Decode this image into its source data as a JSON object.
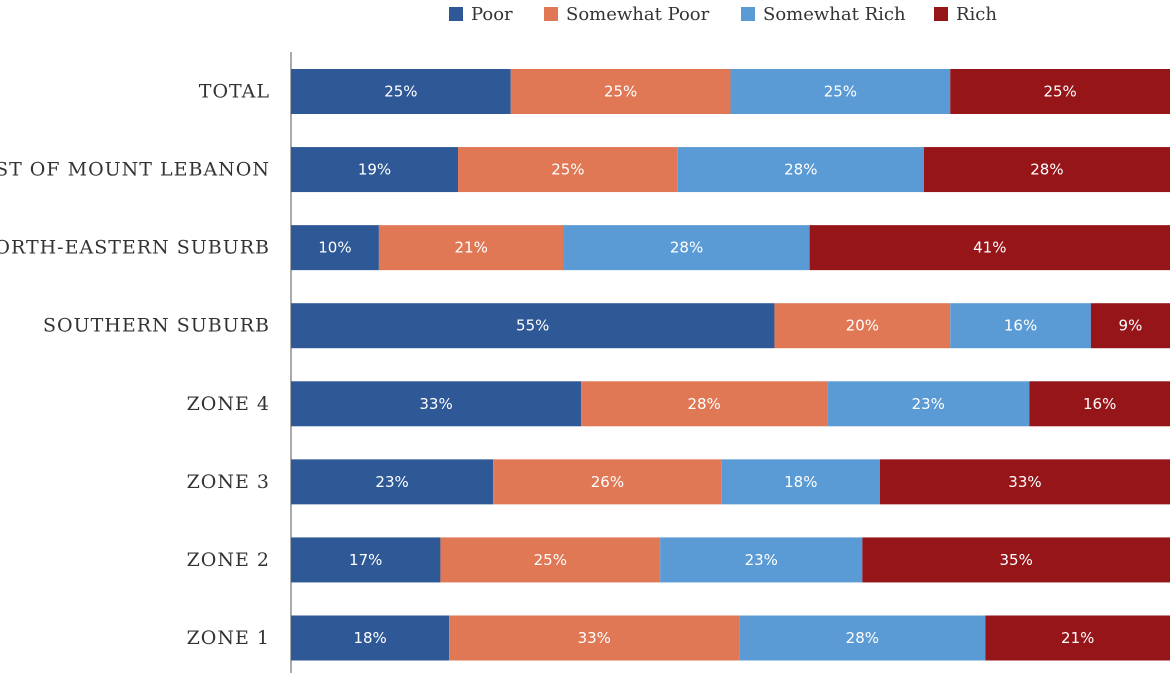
{
  "chart_data": {
    "type": "bar",
    "orientation": "horizontal",
    "stacked": true,
    "categories": [
      "TOTAL",
      "REST OF MOUNT LEBANON",
      "NORTH-EASTERN SUBURB",
      "SOUTHERN SUBURB",
      "ZONE 4",
      "ZONE 3",
      "ZONE 2",
      "ZONE 1"
    ],
    "series": [
      {
        "name": "Poor",
        "color": "#2e5896",
        "values": [
          25,
          19,
          10,
          55,
          33,
          23,
          17,
          18
        ]
      },
      {
        "name": "Somewhat Poor",
        "color": "#e07856",
        "values": [
          25,
          25,
          21,
          20,
          28,
          26,
          25,
          33
        ]
      },
      {
        "name": "Somewhat Rich",
        "color": "#5b9bd5",
        "values": [
          25,
          28,
          28,
          16,
          23,
          18,
          23,
          28
        ]
      },
      {
        "name": "Rich",
        "color": "#961519",
        "values": [
          25,
          28,
          41,
          9,
          16,
          33,
          35,
          21
        ]
      }
    ],
    "value_suffix": "%",
    "legend_position": "top-center",
    "grid": false,
    "title": "",
    "xlabel": "",
    "ylabel": ""
  }
}
